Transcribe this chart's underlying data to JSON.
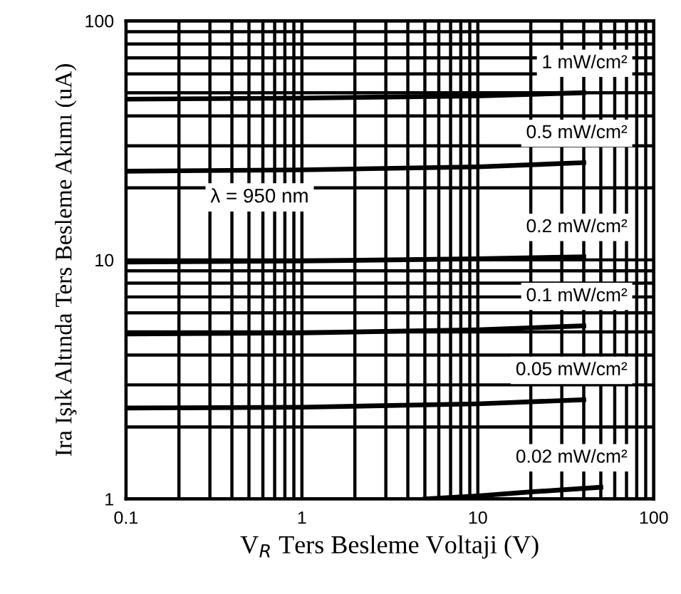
{
  "chart_data": {
    "type": "line",
    "xlabel": "V$_{R}$ Ters Besleme Voltaji (V)",
    "ylabel": "Ira Işık Altında Ters Besleme Akımı (uA)",
    "annotations": [
      "λ = 950 nm"
    ],
    "log": "xy",
    "xlim": [
      0.1,
      100
    ],
    "ylim": [
      1,
      100
    ],
    "xticks": [
      0.1,
      1,
      10,
      100
    ],
    "yticks": [
      1,
      10,
      100
    ],
    "grid": true,
    "marker": "none",
    "line_style": "solid",
    "series": [
      {
        "name": "1 mW/cm²",
        "color": "#000000",
        "x": [
          0.1,
          1,
          10,
          40
        ],
        "values": [
          47,
          47.5,
          48.5,
          50
        ]
      },
      {
        "name": "0.5 mW/cm²",
        "color": "#000000",
        "x": [
          0.1,
          1,
          10,
          40
        ],
        "values": [
          23.5,
          23.8,
          24.5,
          25.5
        ]
      },
      {
        "name": "0.2 mW/cm²",
        "color": "#000000",
        "x": [
          0.1,
          1,
          10,
          40
        ],
        "values": [
          9.8,
          9.9,
          10.1,
          10.3
        ]
      },
      {
        "name": "0.1 mW/cm²",
        "color": "#000000",
        "x": [
          0.1,
          1,
          10,
          40
        ],
        "values": [
          4.9,
          4.95,
          5.1,
          5.3
        ]
      },
      {
        "name": "0.05 mW/cm²",
        "color": "#000000",
        "x": [
          0.1,
          1,
          10,
          40
        ],
        "values": [
          2.4,
          2.42,
          2.5,
          2.6
        ]
      },
      {
        "name": "0.02 mW/cm²",
        "color": "#000000",
        "x": [
          5,
          10,
          20,
          50
        ],
        "values": [
          1.0,
          1.03,
          1.07,
          1.12
        ]
      }
    ]
  }
}
